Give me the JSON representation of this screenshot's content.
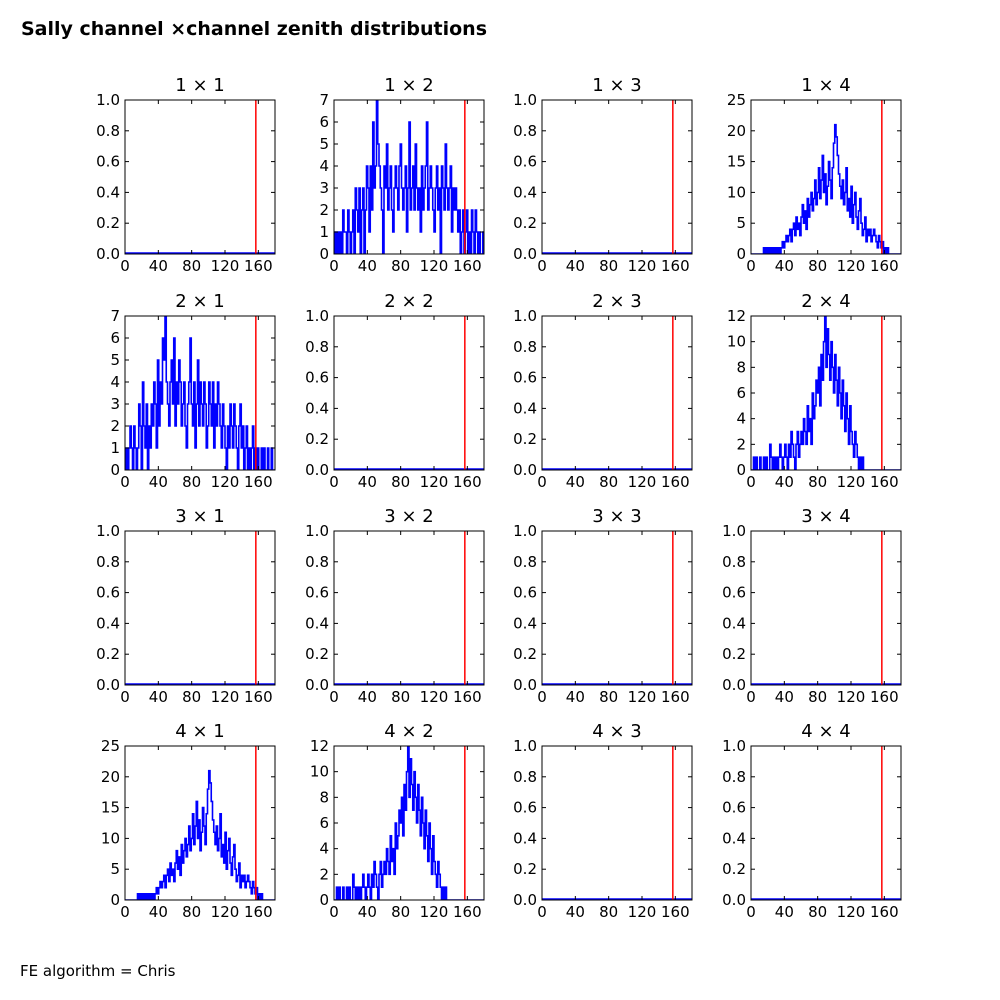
{
  "figure": {
    "title": "Sally channel ×channel zenith distributions",
    "footer": "FE algorithm = Chris"
  },
  "colors": {
    "histogram": "#0000ff",
    "reference_line": "#ff0000",
    "axes": "#000000"
  },
  "chart_data": [
    {
      "type": "line",
      "title": "1  × 1",
      "xlim": [
        0,
        180
      ],
      "ylim": [
        0,
        1
      ],
      "xticks": [
        0,
        40,
        80,
        120,
        160
      ],
      "yticks": [
        0,
        0.2,
        0.4,
        0.6,
        0.8,
        1
      ],
      "ytick_labels": [
        "0.0",
        "0.2",
        "0.4",
        "0.6",
        "0.8",
        "1.0"
      ],
      "vline": 157,
      "step": 1.5,
      "values": []
    },
    {
      "type": "line",
      "title": "1  × 2",
      "xlim": [
        0,
        180
      ],
      "ylim": [
        0,
        7
      ],
      "xticks": [
        0,
        40,
        80,
        120,
        160
      ],
      "yticks": [
        0,
        1,
        2,
        3,
        4,
        5,
        6,
        7
      ],
      "ytick_labels": [
        "0",
        "1",
        "2",
        "3",
        "4",
        "5",
        "6",
        "7"
      ],
      "vline": 157,
      "step": 1.5,
      "values": [
        0,
        1,
        0,
        1,
        0,
        1,
        0,
        2,
        1,
        1,
        0,
        2,
        1,
        0,
        1,
        2,
        0,
        3,
        2,
        1,
        3,
        0,
        2,
        3,
        0,
        2,
        4,
        3,
        1,
        4,
        2,
        6,
        3,
        4,
        7,
        5,
        4,
        3,
        2,
        0,
        4,
        3,
        5,
        2,
        3,
        4,
        2,
        1,
        3,
        4,
        3,
        2,
        4,
        5,
        3,
        2,
        3,
        4,
        1,
        3,
        6,
        2,
        3,
        4,
        2,
        5,
        3,
        2,
        3,
        1,
        4,
        2,
        3,
        4,
        6,
        2,
        3,
        4,
        3,
        2,
        1,
        3,
        4,
        2,
        3,
        0,
        4,
        3,
        2,
        5,
        3,
        2,
        3,
        4,
        1,
        3,
        2,
        3,
        2,
        1,
        2,
        0,
        1,
        2,
        0,
        1,
        2,
        0,
        1,
        0,
        2,
        1,
        0,
        2,
        1,
        0,
        1,
        0,
        0,
        1,
        0
      ]
    },
    {
      "type": "line",
      "title": "1  × 3",
      "xlim": [
        0,
        180
      ],
      "ylim": [
        0,
        1
      ],
      "xticks": [
        0,
        40,
        80,
        120,
        160
      ],
      "yticks": [
        0,
        0.2,
        0.4,
        0.6,
        0.8,
        1
      ],
      "ytick_labels": [
        "0.0",
        "0.2",
        "0.4",
        "0.6",
        "0.8",
        "1.0"
      ],
      "vline": 157,
      "step": 1.5,
      "values": []
    },
    {
      "type": "line",
      "title": "1  × 4",
      "xlim": [
        0,
        180
      ],
      "ylim": [
        0,
        25
      ],
      "xticks": [
        0,
        40,
        80,
        120,
        160
      ],
      "yticks": [
        0,
        5,
        10,
        15,
        20,
        25
      ],
      "ytick_labels": [
        "0",
        "5",
        "10",
        "15",
        "20",
        "25"
      ],
      "vline": 157,
      "step": 1.5,
      "values": [
        0,
        0,
        0,
        0,
        0,
        0,
        0,
        0,
        0,
        0,
        1,
        0,
        1,
        0,
        1,
        0,
        1,
        0,
        1,
        0,
        1,
        0,
        1,
        0,
        1,
        2,
        1,
        2,
        3,
        2,
        3,
        4,
        2,
        4,
        5,
        3,
        6,
        4,
        5,
        3,
        6,
        8,
        5,
        7,
        4,
        9,
        6,
        8,
        10,
        7,
        9,
        12,
        8,
        10,
        14,
        9,
        12,
        16,
        10,
        13,
        8,
        11,
        15,
        12,
        9,
        14,
        18,
        21,
        19,
        16,
        13,
        11,
        9,
        12,
        8,
        10,
        14,
        7,
        9,
        6,
        11,
        5,
        8,
        10,
        6,
        4,
        7,
        9,
        5,
        3,
        4,
        6,
        2,
        4,
        3,
        4,
        2,
        3,
        4,
        3,
        2,
        1,
        3,
        2,
        1,
        2,
        0,
        1,
        0,
        1,
        0,
        0,
        0,
        0,
        0,
        0,
        0,
        0,
        0,
        0
      ]
    },
    {
      "type": "line",
      "title": "2  × 1",
      "xlim": [
        0,
        180
      ],
      "ylim": [
        0,
        7
      ],
      "xticks": [
        0,
        40,
        80,
        120,
        160
      ],
      "yticks": [
        0,
        1,
        2,
        3,
        4,
        5,
        6,
        7
      ],
      "ytick_labels": [
        "0",
        "1",
        "2",
        "3",
        "4",
        "5",
        "6",
        "7"
      ],
      "vline": 157,
      "step": 1.5,
      "values": [
        0,
        1,
        0,
        1,
        2,
        1,
        0,
        2,
        1,
        0,
        1,
        3,
        2,
        0,
        4,
        2,
        1,
        3,
        0,
        2,
        1,
        3,
        2,
        4,
        3,
        1,
        5,
        2,
        4,
        3,
        6,
        5,
        7,
        4,
        3,
        2,
        4,
        5,
        3,
        6,
        2,
        4,
        3,
        5,
        4,
        2,
        3,
        4,
        2,
        1,
        3,
        4,
        6,
        3,
        2,
        4,
        1,
        3,
        5,
        2,
        4,
        3,
        2,
        4,
        3,
        1,
        2,
        4,
        3,
        2,
        4,
        1,
        3,
        2,
        4,
        3,
        2,
        1,
        3,
        2,
        1,
        0,
        2,
        1,
        3,
        2,
        1,
        3,
        2,
        1,
        0,
        2,
        3,
        1,
        2,
        0,
        1,
        2,
        0,
        1,
        0,
        1,
        2,
        0,
        1,
        0,
        1,
        0,
        0,
        1,
        0,
        1,
        0,
        0,
        1,
        0,
        0,
        1,
        0,
        0
      ]
    },
    {
      "type": "line",
      "title": "2  × 2",
      "xlim": [
        0,
        180
      ],
      "ylim": [
        0,
        1
      ],
      "xticks": [
        0,
        40,
        80,
        120,
        160
      ],
      "yticks": [
        0,
        0.2,
        0.4,
        0.6,
        0.8,
        1
      ],
      "ytick_labels": [
        "0.0",
        "0.2",
        "0.4",
        "0.6",
        "0.8",
        "1.0"
      ],
      "vline": 157,
      "step": 1.5,
      "values": []
    },
    {
      "type": "line",
      "title": "2  × 3",
      "xlim": [
        0,
        180
      ],
      "ylim": [
        0,
        1
      ],
      "xticks": [
        0,
        40,
        80,
        120,
        160
      ],
      "yticks": [
        0,
        0.2,
        0.4,
        0.6,
        0.8,
        1
      ],
      "ytick_labels": [
        "0.0",
        "0.2",
        "0.4",
        "0.6",
        "0.8",
        "1.0"
      ],
      "vline": 157,
      "step": 1.5,
      "values": []
    },
    {
      "type": "line",
      "title": "2  × 4",
      "xlim": [
        0,
        180
      ],
      "ylim": [
        0,
        12
      ],
      "xticks": [
        0,
        40,
        80,
        120,
        160
      ],
      "yticks": [
        0,
        2,
        4,
        6,
        8,
        10,
        12
      ],
      "ytick_labels": [
        "0",
        "2",
        "4",
        "6",
        "8",
        "10",
        "12"
      ],
      "vline": 157,
      "step": 1.5,
      "values": [
        0,
        0,
        1,
        0,
        1,
        0,
        0,
        1,
        0,
        0,
        1,
        0,
        1,
        0,
        0,
        2,
        1,
        0,
        1,
        0,
        1,
        0,
        1,
        2,
        1,
        0,
        1,
        2,
        1,
        0,
        2,
        1,
        3,
        2,
        1,
        0,
        2,
        3,
        1,
        2,
        3,
        2,
        4,
        3,
        2,
        5,
        3,
        4,
        2,
        6,
        4,
        5,
        7,
        6,
        8,
        5,
        9,
        7,
        10,
        12,
        8,
        11,
        9,
        7,
        10,
        8,
        6,
        9,
        7,
        5,
        8,
        6,
        4,
        7,
        5,
        3,
        6,
        4,
        2,
        5,
        3,
        2,
        1,
        3,
        2,
        1,
        0,
        1,
        0,
        1,
        0,
        0,
        0,
        0,
        0,
        0,
        0,
        0,
        0,
        0,
        0,
        0,
        0,
        0,
        0,
        0,
        0,
        0,
        0,
        0,
        0,
        0,
        0,
        0,
        0,
        0,
        0,
        0,
        0,
        0
      ]
    },
    {
      "type": "line",
      "title": "3  × 1",
      "xlim": [
        0,
        180
      ],
      "ylim": [
        0,
        1
      ],
      "xticks": [
        0,
        40,
        80,
        120,
        160
      ],
      "yticks": [
        0,
        0.2,
        0.4,
        0.6,
        0.8,
        1
      ],
      "ytick_labels": [
        "0.0",
        "0.2",
        "0.4",
        "0.6",
        "0.8",
        "1.0"
      ],
      "vline": 157,
      "step": 1.5,
      "values": []
    },
    {
      "type": "line",
      "title": "3  × 2",
      "xlim": [
        0,
        180
      ],
      "ylim": [
        0,
        1
      ],
      "xticks": [
        0,
        40,
        80,
        120,
        160
      ],
      "yticks": [
        0,
        0.2,
        0.4,
        0.6,
        0.8,
        1
      ],
      "ytick_labels": [
        "0.0",
        "0.2",
        "0.4",
        "0.6",
        "0.8",
        "1.0"
      ],
      "vline": 157,
      "step": 1.5,
      "values": []
    },
    {
      "type": "line",
      "title": "3  × 3",
      "xlim": [
        0,
        180
      ],
      "ylim": [
        0,
        1
      ],
      "xticks": [
        0,
        40,
        80,
        120,
        160
      ],
      "yticks": [
        0,
        0.2,
        0.4,
        0.6,
        0.8,
        1
      ],
      "ytick_labels": [
        "0.0",
        "0.2",
        "0.4",
        "0.6",
        "0.8",
        "1.0"
      ],
      "vline": 157,
      "step": 1.5,
      "values": []
    },
    {
      "type": "line",
      "title": "3  × 4",
      "xlim": [
        0,
        180
      ],
      "ylim": [
        0,
        1
      ],
      "xticks": [
        0,
        40,
        80,
        120,
        160
      ],
      "yticks": [
        0,
        0.2,
        0.4,
        0.6,
        0.8,
        1
      ],
      "ytick_labels": [
        "0.0",
        "0.2",
        "0.4",
        "0.6",
        "0.8",
        "1.0"
      ],
      "vline": 157,
      "step": 1.5,
      "values": []
    },
    {
      "type": "line",
      "title": "4  × 1",
      "xlim": [
        0,
        180
      ],
      "ylim": [
        0,
        25
      ],
      "xticks": [
        0,
        40,
        80,
        120,
        160
      ],
      "yticks": [
        0,
        5,
        10,
        15,
        20,
        25
      ],
      "ytick_labels": [
        "0",
        "5",
        "10",
        "15",
        "20",
        "25"
      ],
      "vline": 157,
      "step": 1.5,
      "values": [
        0,
        0,
        0,
        0,
        0,
        0,
        0,
        0,
        0,
        0,
        1,
        0,
        1,
        0,
        1,
        0,
        1,
        0,
        1,
        0,
        1,
        0,
        1,
        0,
        1,
        2,
        1,
        2,
        3,
        2,
        3,
        4,
        2,
        4,
        5,
        3,
        6,
        4,
        5,
        3,
        6,
        8,
        5,
        7,
        4,
        9,
        6,
        8,
        10,
        7,
        9,
        12,
        8,
        10,
        14,
        9,
        12,
        16,
        10,
        13,
        8,
        11,
        15,
        12,
        9,
        14,
        18,
        21,
        19,
        16,
        13,
        11,
        9,
        12,
        8,
        10,
        14,
        7,
        9,
        6,
        11,
        5,
        8,
        10,
        6,
        4,
        7,
        9,
        5,
        3,
        4,
        6,
        2,
        4,
        3,
        4,
        2,
        3,
        4,
        3,
        2,
        1,
        3,
        2,
        1,
        2,
        0,
        1,
        0,
        1,
        0,
        0,
        0,
        0,
        0,
        0,
        0,
        0,
        0,
        0
      ]
    },
    {
      "type": "line",
      "title": "4  × 2",
      "xlim": [
        0,
        180
      ],
      "ylim": [
        0,
        12
      ],
      "xticks": [
        0,
        40,
        80,
        120,
        160
      ],
      "yticks": [
        0,
        2,
        4,
        6,
        8,
        10,
        12
      ],
      "ytick_labels": [
        "0",
        "2",
        "4",
        "6",
        "8",
        "10",
        "12"
      ],
      "vline": 157,
      "step": 1.5,
      "values": [
        0,
        0,
        1,
        0,
        1,
        0,
        0,
        1,
        0,
        0,
        1,
        0,
        1,
        0,
        0,
        2,
        1,
        0,
        1,
        0,
        1,
        0,
        1,
        2,
        1,
        0,
        1,
        2,
        1,
        0,
        2,
        1,
        3,
        2,
        1,
        0,
        2,
        3,
        1,
        2,
        3,
        2,
        4,
        3,
        2,
        5,
        3,
        4,
        2,
        6,
        4,
        5,
        7,
        6,
        8,
        5,
        9,
        7,
        10,
        12,
        8,
        11,
        9,
        7,
        10,
        8,
        6,
        9,
        7,
        5,
        8,
        6,
        4,
        7,
        5,
        3,
        6,
        4,
        2,
        5,
        3,
        2,
        1,
        3,
        2,
        1,
        0,
        1,
        0,
        1,
        0,
        0,
        0,
        0,
        0,
        0,
        0,
        0,
        0,
        0,
        0,
        0,
        0,
        0,
        0,
        0,
        0,
        0,
        0,
        0,
        0,
        0,
        0,
        0,
        0,
        0,
        0,
        0,
        0,
        0
      ]
    },
    {
      "type": "line",
      "title": "4  × 3",
      "xlim": [
        0,
        180
      ],
      "ylim": [
        0,
        1
      ],
      "xticks": [
        0,
        40,
        80,
        120,
        160
      ],
      "yticks": [
        0,
        0.2,
        0.4,
        0.6,
        0.8,
        1
      ],
      "ytick_labels": [
        "0.0",
        "0.2",
        "0.4",
        "0.6",
        "0.8",
        "1.0"
      ],
      "vline": 157,
      "step": 1.5,
      "values": []
    },
    {
      "type": "line",
      "title": "4  × 4",
      "xlim": [
        0,
        180
      ],
      "ylim": [
        0,
        1
      ],
      "xticks": [
        0,
        40,
        80,
        120,
        160
      ],
      "yticks": [
        0,
        0.2,
        0.4,
        0.6,
        0.8,
        1
      ],
      "ytick_labels": [
        "0.0",
        "0.2",
        "0.4",
        "0.6",
        "0.8",
        "1.0"
      ],
      "vline": 157,
      "step": 1.5,
      "values": []
    }
  ]
}
